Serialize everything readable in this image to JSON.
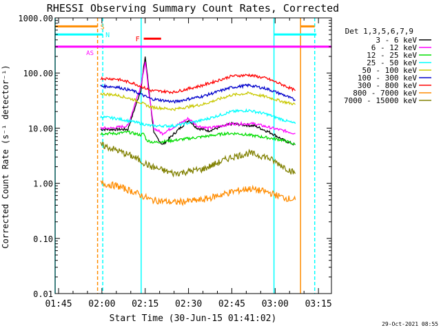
{
  "title": "RHESSI Observing Summary Count Rates, Corrected",
  "footer_timestamp": "29-Oct-2021 08:55",
  "chart_data": {
    "type": "line",
    "title": "RHESSI Observing Summary Count Rates, Corrected",
    "xlabel": "Start Time (30-Jun-15 01:41:02)",
    "ylabel": "Corrected Count Rate (s⁻¹ detector⁻¹)",
    "yscale": "log",
    "ylim": [
      0.01,
      1000
    ],
    "xlim_minutes": [
      -1.2,
      94.5
    ],
    "x_ticks": [
      {
        "label": "01:45",
        "minute": 0
      },
      {
        "label": "02:00",
        "minute": 15
      },
      {
        "label": "02:15",
        "minute": 30
      },
      {
        "label": "02:30",
        "minute": 45
      },
      {
        "label": "02:45",
        "minute": 60
      },
      {
        "label": "03:00",
        "minute": 75
      },
      {
        "label": "03:15",
        "minute": 90
      }
    ],
    "y_ticks": [
      {
        "label": "1000.00",
        "value": 1000
      },
      {
        "label": "100.00",
        "value": 100
      },
      {
        "label": "10.00",
        "value": 10
      },
      {
        "label": "1.00",
        "value": 1
      },
      {
        "label": "0.10",
        "value": 0.1
      },
      {
        "label": "0.01",
        "value": 0.01
      }
    ],
    "legend_title": "Det 1,3,5,6,7,9",
    "series": [
      {
        "name": "3 - 6 keV",
        "color": "#000000",
        "minutes": [
          14.5,
          18,
          24,
          28.5,
          30,
          31.5,
          33,
          36,
          45,
          48,
          52,
          60,
          68,
          74,
          78,
          82
        ],
        "values": [
          9.5,
          9.5,
          9.5,
          50,
          200,
          40,
          8,
          5,
          14,
          10,
          9,
          12,
          11,
          8,
          6,
          5
        ]
      },
      {
        "name": "6 - 12 keV",
        "color": "#ff00ff",
        "minutes": [
          14.5,
          18,
          24,
          28.5,
          30,
          31.5,
          33,
          36,
          45,
          48,
          52,
          60,
          68,
          74,
          78,
          82
        ],
        "values": [
          10,
          10,
          11,
          60,
          160,
          35,
          10,
          8,
          15,
          11,
          10,
          12,
          12,
          10,
          9,
          8
        ]
      },
      {
        "name": "12 - 25 keV",
        "color": "#00dd00",
        "minutes": [
          14.5,
          20,
          24,
          28.5,
          29.5,
          30.5,
          33,
          40,
          50,
          58,
          62,
          70,
          74,
          78,
          82
        ],
        "values": [
          8,
          8,
          8.5,
          7.5,
          8,
          6,
          5.5,
          6,
          7,
          8,
          8,
          7,
          6.5,
          6,
          5
        ]
      },
      {
        "name": "25 - 50 keV",
        "color": "#00ffff",
        "minutes": [
          14.5,
          20,
          26,
          32,
          40,
          50,
          60,
          66,
          72,
          78,
          82
        ],
        "values": [
          16,
          15,
          13,
          11,
          11,
          14,
          20,
          21,
          18,
          14,
          12
        ]
      },
      {
        "name": "50 - 100 keV",
        "color": "#c8c800",
        "minutes": [
          14.5,
          20,
          26,
          32,
          40,
          50,
          60,
          66,
          72,
          78,
          82
        ],
        "values": [
          42,
          40,
          33,
          24,
          22,
          27,
          40,
          43,
          37,
          30,
          27
        ]
      },
      {
        "name": "100 - 300 keV",
        "color": "#0000cc",
        "minutes": [
          14.5,
          20,
          26,
          32,
          40,
          50,
          60,
          66,
          72,
          78,
          82
        ],
        "values": [
          58,
          56,
          47,
          34,
          30,
          38,
          55,
          60,
          52,
          40,
          32
        ]
      },
      {
        "name": "300 - 800 keV",
        "color": "#ff0000",
        "minutes": [
          14.5,
          20,
          26,
          32,
          40,
          50,
          60,
          66,
          72,
          78,
          82
        ],
        "values": [
          80,
          78,
          65,
          48,
          45,
          60,
          88,
          92,
          80,
          60,
          48
        ]
      },
      {
        "name": "800 - 7000 keV",
        "color": "#ff8c00",
        "minutes": [
          14.5,
          20,
          26,
          32,
          40,
          50,
          60,
          66,
          72,
          78,
          82
        ],
        "values": [
          1.0,
          0.9,
          0.7,
          0.5,
          0.45,
          0.5,
          0.7,
          0.8,
          0.7,
          0.55,
          0.5
        ]
      },
      {
        "name": "7000 - 15000 keV",
        "color": "#808000",
        "minutes": [
          14.5,
          20,
          26,
          32,
          40,
          50,
          60,
          66,
          72,
          78,
          82
        ],
        "values": [
          5,
          4,
          3,
          2,
          1.5,
          1.8,
          3,
          3.5,
          3,
          2,
          1.5
        ]
      }
    ],
    "flag_bars": [
      {
        "label": "S",
        "color": "#ff8c00",
        "segments": [
          [
            -1.2,
            13.5
          ],
          [
            83.8,
            88.7
          ]
        ],
        "value": 700
      },
      {
        "label": "N",
        "color": "#00ffff",
        "segments": [
          [
            -1.2,
            15.3
          ],
          [
            74.6,
            89.3
          ]
        ],
        "value": 500
      },
      {
        "label": "F",
        "color": "#ff0000",
        "segments": [
          [
            29.5,
            35.5
          ]
        ],
        "value": 420
      },
      {
        "label": "AS",
        "color": "#ff00ff",
        "segments": [
          [
            -1.2,
            94.5
          ]
        ],
        "value": 300
      }
    ],
    "vertical_markers": [
      {
        "minute": -1.2,
        "color": "#00ffff",
        "style": "solid"
      },
      {
        "minute": 13.5,
        "color": "#ff8c00",
        "style": "dashed"
      },
      {
        "minute": 15.3,
        "color": "#00ffff",
        "style": "dashed"
      },
      {
        "minute": 28.6,
        "color": "#00ffff",
        "style": "solid"
      },
      {
        "minute": 74.6,
        "color": "#00ffff",
        "style": "solid"
      },
      {
        "minute": 83.8,
        "color": "#ff8c00",
        "style": "solid"
      },
      {
        "minute": 88.7,
        "color": "#00ffff",
        "style": "dashed"
      }
    ]
  }
}
